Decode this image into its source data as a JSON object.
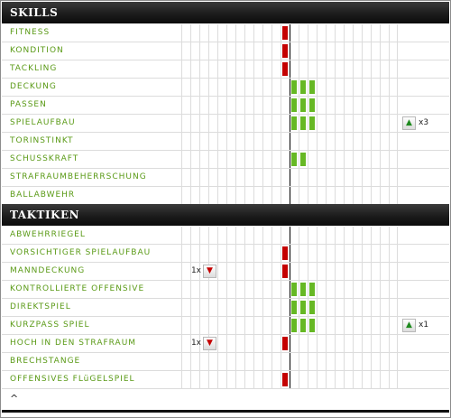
{
  "skills": {
    "title": "SKILLS",
    "rows": [
      {
        "label": "FITNESS",
        "value": -1
      },
      {
        "label": "KONDITION",
        "value": -1
      },
      {
        "label": "TACKLING",
        "value": -1
      },
      {
        "label": "DECKUNG",
        "value": 3
      },
      {
        "label": "PASSEN",
        "value": 3
      },
      {
        "label": "SPIELAUFBAU",
        "value": 3,
        "trend": {
          "direction": "up",
          "side": "right",
          "count": "x3"
        }
      },
      {
        "label": "TORINSTINKT",
        "value": 0
      },
      {
        "label": "SCHUSSKRAFT",
        "value": 2
      },
      {
        "label": "STRAFRAUMBEHERRSCHUNG",
        "value": 0
      },
      {
        "label": "BALLABWEHR",
        "value": 0
      }
    ]
  },
  "tactics": {
    "title": "TAKTIKEN",
    "rows": [
      {
        "label": "ABWEHRRIEGEL",
        "value": 0
      },
      {
        "label": "VORSICHTIGER SPIELAUFBAU",
        "value": -1
      },
      {
        "label": "MANNDECKUNG",
        "value": -1,
        "trend": {
          "direction": "down",
          "side": "left",
          "count": "1x"
        }
      },
      {
        "label": "KONTROLLIERTE OFFENSIVE",
        "value": 3
      },
      {
        "label": "DIREKTSPIEL",
        "value": 3
      },
      {
        "label": "KURZPASS SPIEL",
        "value": 3,
        "trend": {
          "direction": "up",
          "side": "right",
          "count": "x1"
        }
      },
      {
        "label": "HOCH IN DEN STRAFRAUM",
        "value": -1,
        "trend": {
          "direction": "down",
          "side": "left",
          "count": "1x"
        }
      },
      {
        "label": "BRECHSTANGE",
        "value": 0
      },
      {
        "label": "OFFENSIVES FLüGELSPIEL",
        "value": -1
      }
    ]
  },
  "scale": {
    "min": -12,
    "max": 12
  },
  "colors": {
    "negative": "#c40000",
    "positive": "#66b824",
    "label": "#5a9a16",
    "header": "#1c1c1c"
  },
  "icons": {
    "trend_up": "arrow-up-icon",
    "trend_down": "arrow-down-icon",
    "collapse": "caret-up-icon"
  },
  "footer": {
    "collapse_symbol": "^"
  }
}
